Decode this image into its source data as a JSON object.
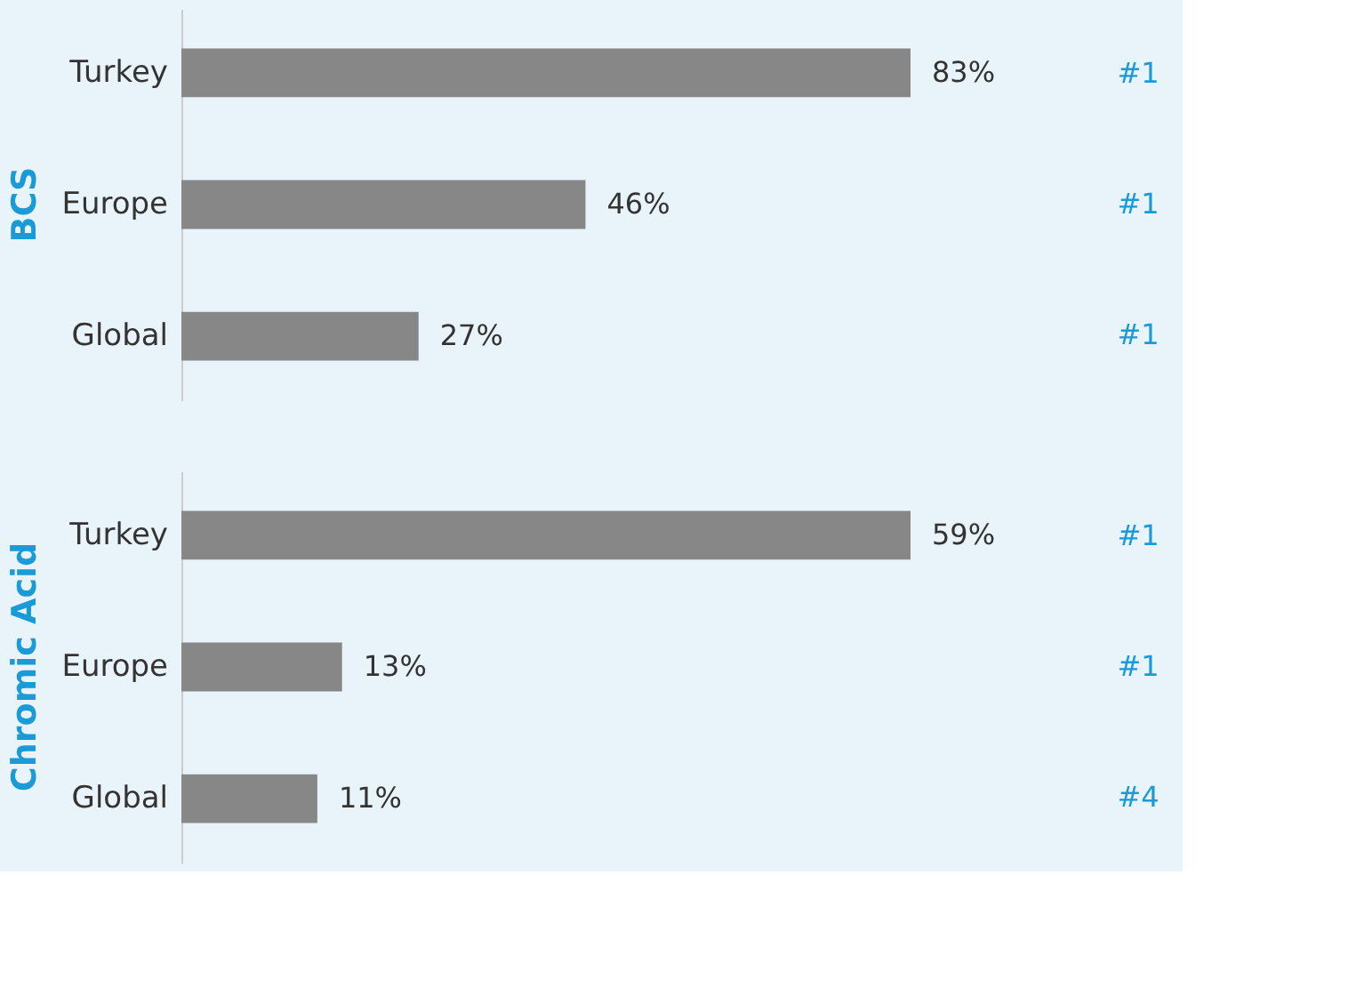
{
  "chart_data": [
    {
      "type": "bar",
      "orientation": "horizontal",
      "title": "BCS",
      "categories": [
        "Turkey",
        "Europe",
        "Global"
      ],
      "values": [
        83,
        46,
        27
      ],
      "value_labels": [
        "83%",
        "46%",
        "27%"
      ],
      "color": "#878787",
      "grid": false,
      "tick_labels": "y",
      "annotations": [
        "#1",
        "#1",
        "#1"
      ]
    },
    {
      "type": "bar",
      "orientation": "horizontal",
      "title": "Chromic Acid",
      "categories": [
        "Turkey",
        "Europe",
        "Global"
      ],
      "values": [
        59,
        13,
        11
      ],
      "value_labels": [
        "59%",
        "13%",
        "11%"
      ],
      "color": "#878787",
      "grid": false,
      "tick_labels": "y",
      "annotations": [
        "#1",
        "#1",
        "#4"
      ]
    }
  ]
}
